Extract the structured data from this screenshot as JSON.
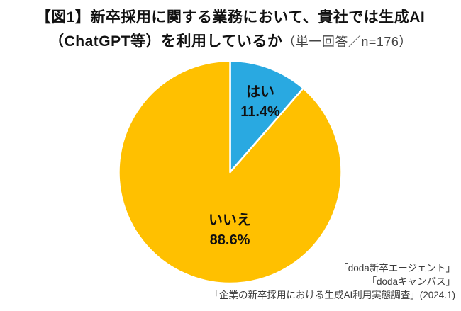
{
  "title": {
    "line1": "【図1】新卒採用に関する業務において、貴社では生成AI",
    "line2_main": "（ChatGPT等）を利用しているか",
    "line2_note": "（単一回答／n=176）"
  },
  "chart_data": {
    "type": "pie",
    "title": "【図1】新卒採用に関する業務において、貴社では生成AI（ChatGPT等）を利用しているか",
    "subtitle": "単一回答／n=176",
    "categories": [
      "はい",
      "いいえ"
    ],
    "values": [
      11.4,
      88.6
    ],
    "unit": "%",
    "colors": [
      "#29A9E1",
      "#FFC000"
    ],
    "slice_ids": [
      "yes",
      "no"
    ],
    "start_angle_deg": 0,
    "direction": "clockwise",
    "legend_position": "none",
    "labels": [
      {
        "name": "はい",
        "value_text": "11.4%"
      },
      {
        "name": "いいえ",
        "value_text": "88.6%"
      }
    ]
  },
  "source": {
    "line1": "「doda新卒エージェント」",
    "line2": "「dodaキャンパス」",
    "line3": "「企業の新卒採用における生成AI利用実態調査」(2024.1)"
  }
}
